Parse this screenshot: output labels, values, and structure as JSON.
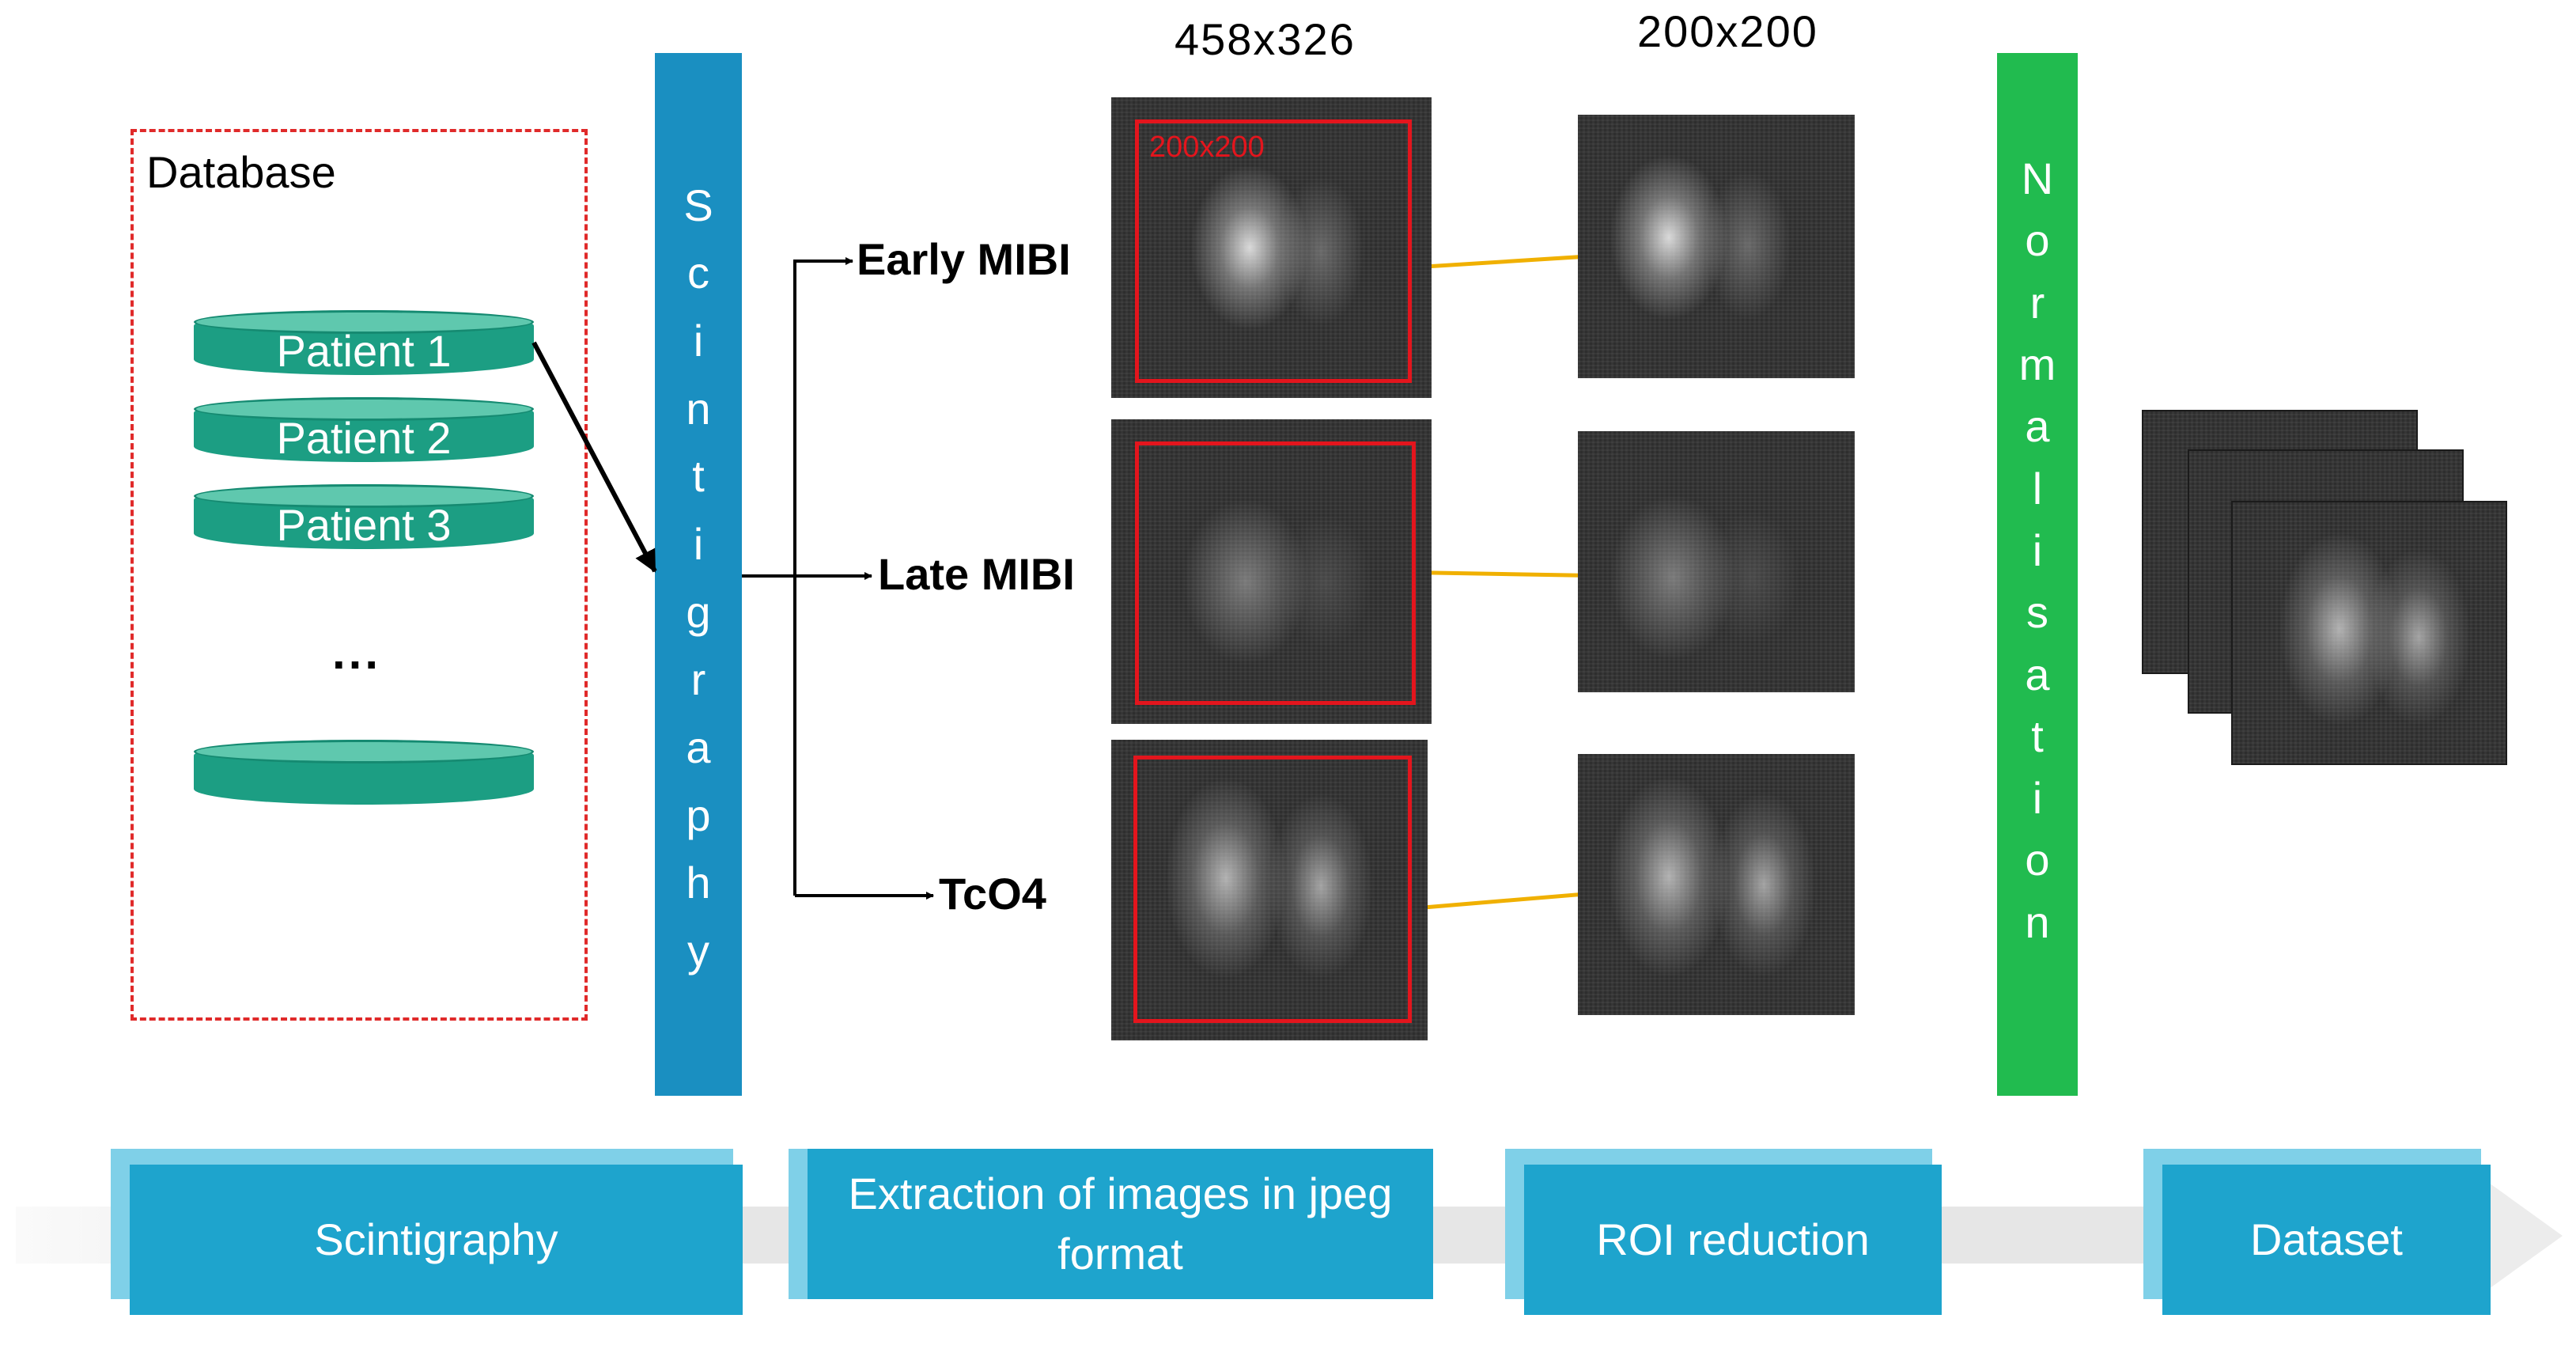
{
  "database": {
    "title": "Database",
    "patients": [
      "Patient 1",
      "Patient 2",
      "Patient 3"
    ],
    "ellipsis": "..."
  },
  "bars": {
    "scintigraphy": [
      "S",
      "c",
      "i",
      "n",
      "t",
      "i",
      "g",
      "r",
      "a",
      "p",
      "h",
      "y"
    ],
    "normalisation": [
      "N",
      "o",
      "r",
      "m",
      "a",
      "l",
      "i",
      "s",
      "a",
      "t",
      "i",
      "o",
      "n"
    ]
  },
  "images": {
    "original_size": "458x326",
    "roi_size": "200x200",
    "roi_box_text": "200x200",
    "early": "Early MIBI",
    "late": "Late MIBI",
    "tco4": "TcO4"
  },
  "pipeline": {
    "step1": "Scintigraphy",
    "step2": "Extraction of images in jpeg format",
    "step3": "ROI reduction",
    "step4": "Dataset"
  },
  "colors": {
    "database_border": "#e02a2a",
    "disk": "#1c9e83",
    "scintigraphy_bar": "#1a8fc1",
    "normalisation_bar": "#21bb4f",
    "roi_box": "#e3151d",
    "roi_arrow": "#f0b000",
    "step_box": "#1ea4cd"
  }
}
